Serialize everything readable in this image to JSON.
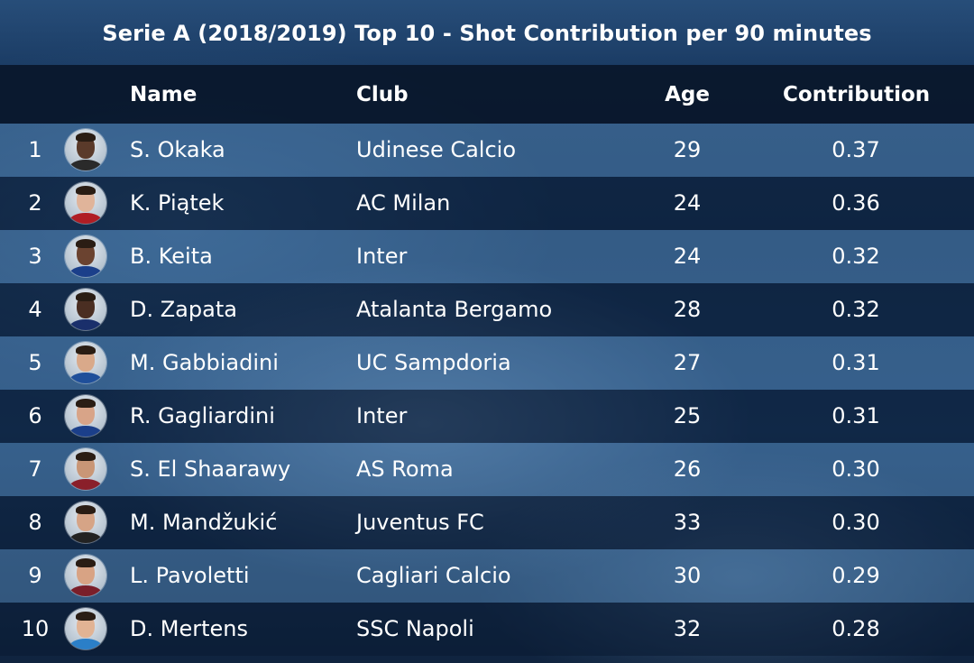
{
  "title": "Serie A (2018/2019) Top 10 - Shot Contribution per 90 minutes",
  "chart_data": {
    "type": "table",
    "title": "Serie A (2018/2019) Top 10 - Shot Contribution per 90 minutes",
    "columns": [
      "",
      "",
      "Name",
      "Club",
      "Age",
      "Contribution"
    ],
    "rows": [
      {
        "rank": "1",
        "name": "S. Okaka",
        "club": "Udinese Calcio",
        "age": "29",
        "contribution": "0.37",
        "skin": "#5a3a2a",
        "shirt": "#2a2a2a"
      },
      {
        "rank": "2",
        "name": "K. Piątek",
        "club": "AC Milan",
        "age": "24",
        "contribution": "0.36",
        "skin": "#e0b49a",
        "shirt": "#b01d24"
      },
      {
        "rank": "3",
        "name": "B. Keita",
        "club": "Inter",
        "age": "24",
        "contribution": "0.32",
        "skin": "#6b4330",
        "shirt": "#1b3f8a"
      },
      {
        "rank": "4",
        "name": "D. Zapata",
        "club": "Atalanta Bergamo",
        "age": "28",
        "contribution": "0.32",
        "skin": "#4a2e22",
        "shirt": "#1a2f6b"
      },
      {
        "rank": "5",
        "name": "M. Gabbiadini",
        "club": "UC Sampdoria",
        "age": "27",
        "contribution": "0.31",
        "skin": "#d9a98a",
        "shirt": "#1f4f9a"
      },
      {
        "rank": "6",
        "name": "R. Gagliardini",
        "club": "Inter",
        "age": "25",
        "contribution": "0.31",
        "skin": "#d8a488",
        "shirt": "#1b3f8a"
      },
      {
        "rank": "7",
        "name": "S. El Shaarawy",
        "club": "AS Roma",
        "age": "26",
        "contribution": "0.30",
        "skin": "#c99676",
        "shirt": "#8a1f2a"
      },
      {
        "rank": "8",
        "name": "M. Mandžukić",
        "club": "Juventus FC",
        "age": "33",
        "contribution": "0.30",
        "skin": "#d6a486",
        "shirt": "#222222"
      },
      {
        "rank": "9",
        "name": "L. Pavoletti",
        "club": "Cagliari Calcio",
        "age": "30",
        "contribution": "0.29",
        "skin": "#d8a384",
        "shirt": "#7a1f2a"
      },
      {
        "rank": "10",
        "name": "D. Mertens",
        "club": "SSC Napoli",
        "age": "32",
        "contribution": "0.28",
        "skin": "#e1b394",
        "shirt": "#2b7fc8"
      }
    ]
  },
  "colors": {
    "header_bg": "#081428",
    "row_odd": "#5f96c8",
    "row_even": "#0a1932",
    "text": "#ffffff"
  }
}
